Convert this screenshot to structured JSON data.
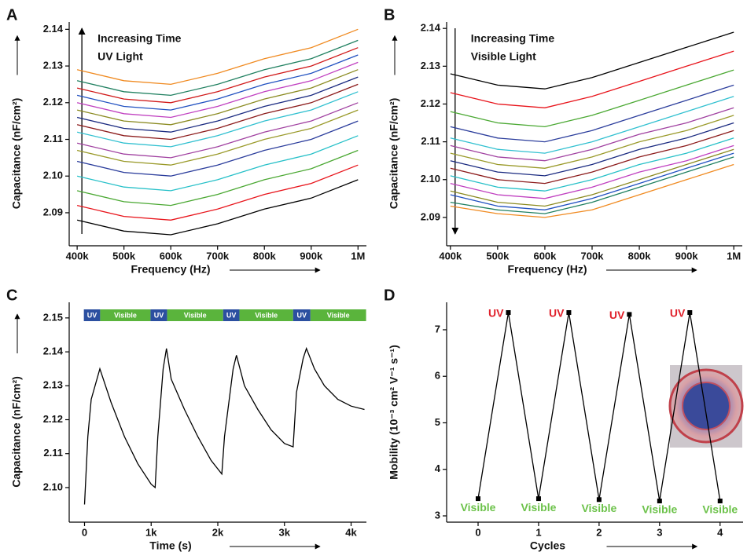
{
  "chart_data": [
    {
      "type": "line",
      "panel": "A",
      "x_label": "Frequency (Hz)",
      "y_label": "Capacitance (nF/cm²)",
      "annotations": [
        "Increasing Time",
        "UV Light"
      ],
      "x": [
        400000,
        500000,
        600000,
        700000,
        800000,
        900000,
        1000000
      ],
      "xlim": [
        383000,
        1018000
      ],
      "xticks": [
        {
          "value": 400000,
          "label": "400k"
        },
        {
          "value": 500000,
          "label": "500k"
        },
        {
          "value": 600000,
          "label": "600k"
        },
        {
          "value": 700000,
          "label": "700k"
        },
        {
          "value": 800000,
          "label": "800k"
        },
        {
          "value": 900000,
          "label": "900k"
        },
        {
          "value": 1000000,
          "label": "1M"
        }
      ],
      "ylim": [
        2.081,
        2.142
      ],
      "yticks": [
        2.09,
        {
          "value": 2.1,
          "label": "2.10"
        },
        2.11,
        2.12,
        2.13,
        2.14
      ],
      "series": [
        {
          "color": "#000000",
          "values": [
            2.088,
            2.085,
            2.084,
            2.087,
            2.091,
            2.094,
            2.099
          ]
        },
        {
          "color": "#e8141b",
          "values": [
            2.092,
            2.089,
            2.088,
            2.091,
            2.095,
            2.098,
            2.103
          ]
        },
        {
          "color": "#4aa832",
          "values": [
            2.096,
            2.093,
            2.092,
            2.095,
            2.099,
            2.102,
            2.107
          ]
        },
        {
          "color": "#26c0c8",
          "values": [
            2.1,
            2.097,
            2.096,
            2.099,
            2.103,
            2.106,
            2.111
          ]
        },
        {
          "color": "#2b3d9c",
          "values": [
            2.104,
            2.101,
            2.1,
            2.103,
            2.107,
            2.11,
            2.115
          ]
        },
        {
          "color": "#9a9a2a",
          "values": [
            2.107,
            2.104,
            2.103,
            2.106,
            2.11,
            2.113,
            2.118
          ]
        },
        {
          "color": "#a040a0",
          "values": [
            2.109,
            2.106,
            2.105,
            2.108,
            2.112,
            2.115,
            2.12
          ]
        },
        {
          "color": "#30c0d0",
          "values": [
            2.112,
            2.109,
            2.108,
            2.111,
            2.115,
            2.118,
            2.123
          ]
        },
        {
          "color": "#8b1a1a",
          "values": [
            2.114,
            2.111,
            2.11,
            2.113,
            2.117,
            2.12,
            2.125
          ]
        },
        {
          "color": "#1a2a80",
          "values": [
            2.116,
            2.113,
            2.112,
            2.115,
            2.119,
            2.122,
            2.127
          ]
        },
        {
          "color": "#8a8a20",
          "values": [
            2.118,
            2.115,
            2.114,
            2.117,
            2.121,
            2.124,
            2.129
          ]
        },
        {
          "color": "#c040c0",
          "values": [
            2.12,
            2.117,
            2.116,
            2.119,
            2.123,
            2.126,
            2.131
          ]
        },
        {
          "color": "#2050c0",
          "values": [
            2.122,
            2.119,
            2.118,
            2.121,
            2.125,
            2.128,
            2.133
          ]
        },
        {
          "color": "#d01818",
          "values": [
            2.124,
            2.121,
            2.12,
            2.123,
            2.127,
            2.13,
            2.135
          ]
        },
        {
          "color": "#208060",
          "values": [
            2.126,
            2.123,
            2.122,
            2.125,
            2.129,
            2.132,
            2.137
          ]
        },
        {
          "color": "#f08a20",
          "values": [
            2.129,
            2.126,
            2.125,
            2.128,
            2.132,
            2.135,
            2.14
          ]
        }
      ]
    },
    {
      "type": "line",
      "panel": "B",
      "x_label": "Frequency (Hz)",
      "y_label": "Capacitance (nF/cm²)",
      "annotations": [
        "Increasing Time",
        "Visible Light"
      ],
      "x": [
        400000,
        500000,
        600000,
        700000,
        800000,
        900000,
        1000000
      ],
      "xlim": [
        392000,
        1018000
      ],
      "xticks": [
        {
          "value": 400000,
          "label": "400k"
        },
        {
          "value": 500000,
          "label": "500k"
        },
        {
          "value": 600000,
          "label": "600k"
        },
        {
          "value": 700000,
          "label": "700k"
        },
        {
          "value": 800000,
          "label": "800k"
        },
        {
          "value": 900000,
          "label": "900k"
        },
        {
          "value": 1000000,
          "label": "1M"
        }
      ],
      "ylim": [
        2.0825,
        2.1417
      ],
      "yticks": [
        2.09,
        {
          "value": 2.1,
          "label": "2.10"
        },
        2.11,
        2.12,
        2.13,
        2.14
      ],
      "series": [
        {
          "color": "#000000",
          "values": [
            2.128,
            2.125,
            2.124,
            2.127,
            2.131,
            2.135,
            2.139
          ]
        },
        {
          "color": "#e8141b",
          "values": [
            2.123,
            2.12,
            2.119,
            2.122,
            2.126,
            2.13,
            2.134
          ]
        },
        {
          "color": "#4aa832",
          "values": [
            2.118,
            2.115,
            2.114,
            2.117,
            2.121,
            2.125,
            2.129
          ]
        },
        {
          "color": "#2b3d9c",
          "values": [
            2.114,
            2.111,
            2.11,
            2.113,
            2.117,
            2.121,
            2.125
          ]
        },
        {
          "color": "#30c0d0",
          "values": [
            2.111,
            2.108,
            2.107,
            2.11,
            2.114,
            2.118,
            2.122
          ]
        },
        {
          "color": "#a040a0",
          "values": [
            2.109,
            2.106,
            2.105,
            2.108,
            2.112,
            2.115,
            2.119
          ]
        },
        {
          "color": "#9a9a2a",
          "values": [
            2.107,
            2.104,
            2.103,
            2.106,
            2.11,
            2.113,
            2.117
          ]
        },
        {
          "color": "#1a2a80",
          "values": [
            2.105,
            2.102,
            2.101,
            2.104,
            2.108,
            2.111,
            2.115
          ]
        },
        {
          "color": "#8b1a1a",
          "values": [
            2.103,
            2.1,
            2.099,
            2.102,
            2.106,
            2.109,
            2.113
          ]
        },
        {
          "color": "#26c0c8",
          "values": [
            2.101,
            2.098,
            2.097,
            2.1,
            2.104,
            2.107,
            2.111
          ]
        },
        {
          "color": "#c040c0",
          "values": [
            2.099,
            2.096,
            2.095,
            2.098,
            2.102,
            2.105,
            2.109
          ]
        },
        {
          "color": "#8a8a20",
          "values": [
            2.097,
            2.094,
            2.093,
            2.096,
            2.1,
            2.104,
            2.108
          ]
        },
        {
          "color": "#2050c0",
          "values": [
            2.096,
            2.093,
            2.092,
            2.095,
            2.099,
            2.103,
            2.107
          ]
        },
        {
          "color": "#208060",
          "values": [
            2.094,
            2.092,
            2.091,
            2.094,
            2.098,
            2.102,
            2.106
          ]
        },
        {
          "color": "#f08a20",
          "values": [
            2.093,
            2.091,
            2.09,
            2.092,
            2.096,
            2.1,
            2.104
          ]
        }
      ]
    },
    {
      "type": "line",
      "panel": "C",
      "x_label": "Time (s)",
      "y_label": "Capacitance (nF/cm²)",
      "x": [
        0,
        50,
        100,
        230,
        400,
        600,
        800,
        1000,
        1060,
        1100,
        1180,
        1230,
        1300,
        1500,
        1700,
        1900,
        2060,
        2100,
        2230,
        2280,
        2400,
        2600,
        2800,
        3000,
        3130,
        3180,
        3280,
        3330,
        3450,
        3600,
        3800,
        4000,
        4200
      ],
      "xlim": [
        -230,
        4230
      ],
      "xticks": [
        0,
        {
          "value": 1000,
          "label": "1k"
        },
        {
          "value": 2000,
          "label": "2k"
        },
        {
          "value": 3000,
          "label": "3k"
        },
        {
          "value": 4000,
          "label": "4k"
        }
      ],
      "ylim": [
        2.0898,
        2.1546
      ],
      "yticks": [
        {
          "value": 2.1,
          "label": "2.10"
        },
        2.11,
        2.12,
        2.13,
        2.14,
        2.15
      ],
      "bands": [
        {
          "label": "UV",
          "start": -10,
          "end": 235,
          "color": "#2b4fa0"
        },
        {
          "label": "Visible",
          "start": 235,
          "end": 990,
          "color": "#5ab43c"
        },
        {
          "label": "UV",
          "start": 990,
          "end": 1240,
          "color": "#2b4fa0"
        },
        {
          "label": "Visible",
          "start": 1240,
          "end": 2080,
          "color": "#5ab43c"
        },
        {
          "label": "UV",
          "start": 2080,
          "end": 2325,
          "color": "#2b4fa0"
        },
        {
          "label": "Visible",
          "start": 2325,
          "end": 3130,
          "color": "#5ab43c"
        },
        {
          "label": "UV",
          "start": 3130,
          "end": 3390,
          "color": "#2b4fa0"
        },
        {
          "label": "Visible",
          "start": 3390,
          "end": 4225,
          "color": "#5ab43c"
        }
      ],
      "series": [
        {
          "color": "#000000",
          "values": [
            2.095,
            2.115,
            2.126,
            2.135,
            2.125,
            2.115,
            2.107,
            2.101,
            2.1,
            2.115,
            2.135,
            2.141,
            2.132,
            2.123,
            2.115,
            2.108,
            2.104,
            2.115,
            2.135,
            2.139,
            2.13,
            2.123,
            2.117,
            2.113,
            2.112,
            2.128,
            2.138,
            2.141,
            2.135,
            2.13,
            2.126,
            2.124,
            2.123
          ]
        }
      ]
    },
    {
      "type": "line",
      "panel": "D",
      "x_label": "Cycles",
      "y_label": "Mobility (10⁻³ cm² V⁻¹ s⁻¹)",
      "x": [
        0,
        0.5,
        1,
        1.5,
        2,
        2.5,
        3,
        3.5,
        4
      ],
      "xlim": [
        -0.52,
        4.38
      ],
      "xticks": [
        0,
        1,
        2,
        3,
        4
      ],
      "ylim": [
        2.865,
        7.59
      ],
      "yticks": [
        3,
        4,
        5,
        6,
        7
      ],
      "markers": true,
      "series": [
        {
          "color": "#000000",
          "values": [
            3.37,
            7.37,
            3.37,
            7.37,
            3.35,
            7.33,
            3.32,
            7.37,
            3.32
          ],
          "point_labels": [
            "Visible",
            "UV",
            "Visible",
            "UV",
            "Visible",
            "UV",
            "Visible",
            "UV",
            "Visible"
          ],
          "point_label_colors": [
            "#6cc24a",
            "#e0202a",
            "#6cc24a",
            "#e0202a",
            "#6cc24a",
            "#e0202a",
            "#6cc24a",
            "#e0202a",
            "#6cc24a"
          ]
        }
      ]
    }
  ]
}
